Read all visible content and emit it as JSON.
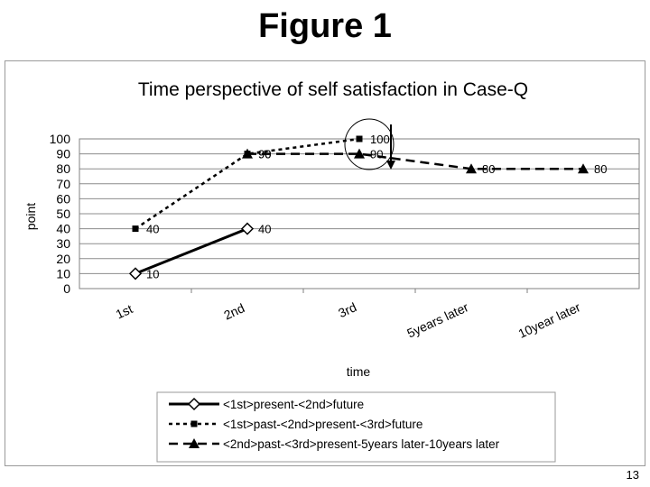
{
  "slide": {
    "title": "Figure 1",
    "page_number": "13"
  },
  "chart_data": {
    "type": "line",
    "title": "Time perspective of self satisfaction in Case-Q",
    "xlabel": "time",
    "ylabel": "point",
    "categories": [
      "1st",
      "2nd",
      "3rd",
      "5years later",
      "10year later"
    ],
    "ylim": [
      0,
      100
    ],
    "yticks": [
      0,
      10,
      20,
      30,
      40,
      50,
      60,
      70,
      80,
      90,
      100
    ],
    "grid": true,
    "legend_position": "bottom",
    "series": [
      {
        "name": "<1st>present-<2nd>future",
        "marker": "diamond-open",
        "line": "solid",
        "values": [
          10,
          40,
          null,
          null,
          null
        ]
      },
      {
        "name": "<1st>past-<2nd>present-<3rd>future",
        "marker": "square",
        "line": "dotted",
        "values": [
          40,
          90,
          100,
          null,
          null
        ]
      },
      {
        "name": "<2nd>past-<3rd>present-5years later-10years later",
        "marker": "triangle",
        "line": "dashed",
        "values": [
          null,
          90,
          90,
          80,
          80
        ]
      }
    ]
  }
}
